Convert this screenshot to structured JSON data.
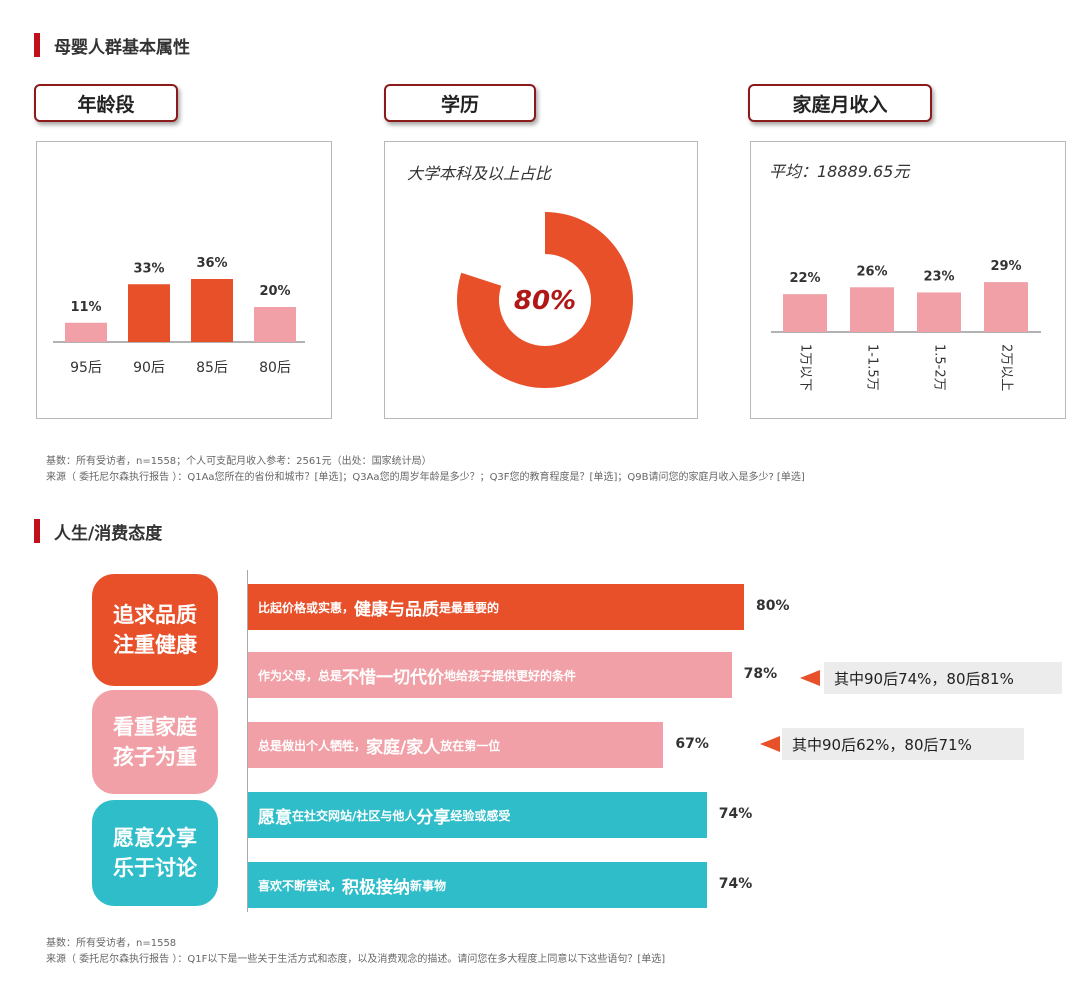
{
  "section1": {
    "title": "母婴人群基本属性",
    "age_tag": "年龄段",
    "edu_tag": "学历",
    "income_tag": "家庭月收入",
    "edu_subtitle": "大学本科及以上占比",
    "income_subtitle": "平均：18889.65元",
    "note1": "基数：所有受访者，n=1558；个人可支配月收入参考：2561元（出处：国家统计局）",
    "note2": "来源（ 委托尼尔森执行报告 ）：Q1Aa您所在的省份和城市？[单选]；Q3Aa您的周岁年龄是多少？；Q3F您的教育程度是？[单选]；Q9B请问您的家庭月收入是多少? [单选]"
  },
  "section2": {
    "title": "人生/消费态度",
    "groups": [
      {
        "line1": "追求品质",
        "line2": "注重健康",
        "color": "#e8502a"
      },
      {
        "line1": "看重家庭",
        "line2": "孩子为重",
        "color": "#f0a0a6"
      },
      {
        "line1": "愿意分享",
        "line2": "乐于讨论",
        "color": "#2fbdc9"
      }
    ],
    "bars": [
      {
        "pre": "比起价格或实惠，",
        "big": "健康与品质",
        "post": "是最重要的",
        "value": 80,
        "label": "80%",
        "color": "#e8502a"
      },
      {
        "pre": "作为父母，总是",
        "big": "不惜一切代价",
        "post": "地给孩子提供更好的条件",
        "value": 78,
        "label": "78%",
        "color": "#f0a0a6"
      },
      {
        "pre": "总是做出个人牺牲，",
        "big": "家庭/家人",
        "post": "放在第一位",
        "value": 67,
        "label": "67%",
        "color": "#f0a0a6"
      },
      {
        "pre": "",
        "big": "愿意",
        "post": "在社交网站/社区与他人",
        "big2": "分享",
        "post2": "经验或感受",
        "value": 74,
        "label": "74%",
        "color": "#2fbdc9"
      },
      {
        "pre": "喜欢不断尝试，",
        "big": "积极接纳",
        "post": "新事物",
        "value": 74,
        "label": "74%",
        "color": "#2fbdc9"
      }
    ],
    "callouts": [
      {
        "text": "其中90后74%，80后81%"
      },
      {
        "text": "其中90后62%，80后71%"
      }
    ],
    "note1": "基数：所有受访者，n=1558",
    "note2": "来源（ 委托尼尔森执行报告 ）：Q1F以下是一些关于生活方式和态度，以及消费观念的描述。请问您在多大程度上同意以下这些语句？[单选]"
  },
  "chart_data": [
    {
      "type": "bar",
      "categories": [
        "95后",
        "90后",
        "85后",
        "80后"
      ],
      "values": [
        11,
        33,
        36,
        20
      ],
      "value_labels": [
        "11%",
        "33%",
        "36%",
        "20%"
      ],
      "colors": [
        "#f0a0a6",
        "#e8502a",
        "#e8502a",
        "#f0a0a6"
      ],
      "title": "年龄段"
    },
    {
      "type": "pie",
      "values": [
        80,
        20
      ],
      "center_label": "80%",
      "colors": [
        "#e8502a",
        "#ffffff"
      ],
      "title": "学历",
      "subtitle": "大学本科及以上占比"
    },
    {
      "type": "bar",
      "categories": [
        "1万以下",
        "1-1.5万",
        "1.5-2万",
        "2万以上"
      ],
      "values": [
        22,
        26,
        23,
        29
      ],
      "value_labels": [
        "22%",
        "26%",
        "23%",
        "29%"
      ],
      "colors": [
        "#f0a0a6",
        "#f0a0a6",
        "#f0a0a6",
        "#f0a0a6"
      ],
      "title": "家庭月收入",
      "subtitle": "平均：18889.65元"
    },
    {
      "type": "bar",
      "orientation": "horizontal",
      "categories": [
        "比起价格或实惠，健康与品质是最重要的",
        "作为父母，总是不惜一切代价地给孩子提供更好的条件",
        "总是做出个人牺牲，家庭/家人放在第一位",
        "愿意在社交网站/社区与他人分享经验或感受",
        "喜欢不断尝试，积极接纳新事物"
      ],
      "values": [
        80,
        78,
        67,
        74,
        74
      ],
      "title": "人生/消费态度"
    }
  ]
}
